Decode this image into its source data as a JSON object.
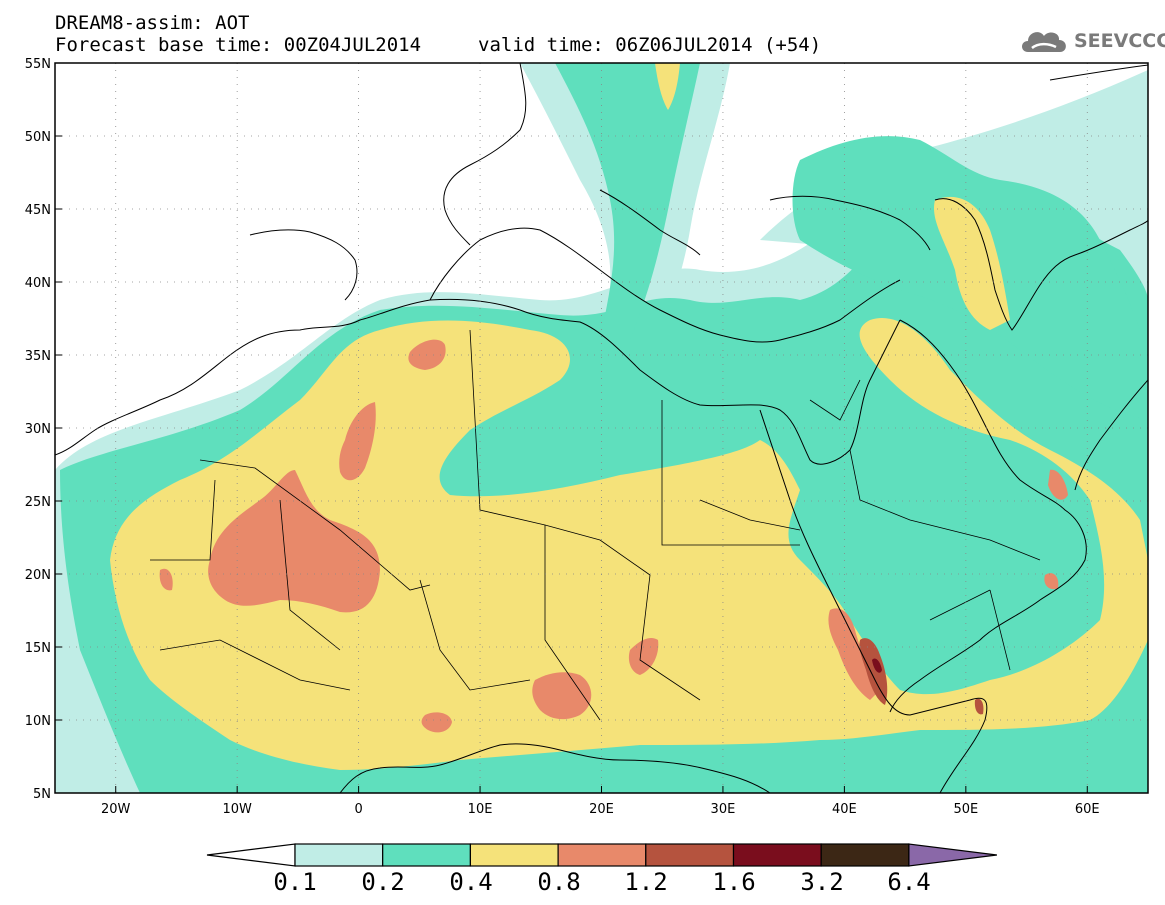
{
  "header": {
    "title": "DREAM8-assim: AOT",
    "base_time": "Forecast base time: 00Z04JUL2014",
    "valid_time": "valid time: 06Z06JUL2014 (+54)"
  },
  "logo": {
    "text": "SEEVCCC",
    "icon": "cloud-icon"
  },
  "map": {
    "projection": "lat-lon",
    "lon_range": [
      -25,
      65
    ],
    "lat_range": [
      5,
      55
    ],
    "lat_labels": [
      {
        "value": 55,
        "label": "55N"
      },
      {
        "value": 50,
        "label": "50N"
      },
      {
        "value": 45,
        "label": "45N"
      },
      {
        "value": 40,
        "label": "40N"
      },
      {
        "value": 35,
        "label": "35N"
      },
      {
        "value": 30,
        "label": "30N"
      },
      {
        "value": 25,
        "label": "25N"
      },
      {
        "value": 20,
        "label": "20N"
      },
      {
        "value": 15,
        "label": "15N"
      },
      {
        "value": 10,
        "label": "10N"
      },
      {
        "value": 5,
        "label": "5N"
      }
    ],
    "lon_labels": [
      {
        "value": -20,
        "label": "20W"
      },
      {
        "value": -10,
        "label": "10W"
      },
      {
        "value": 0,
        "label": "0"
      },
      {
        "value": 10,
        "label": "10E"
      },
      {
        "value": 20,
        "label": "20E"
      },
      {
        "value": 30,
        "label": "30E"
      },
      {
        "value": 40,
        "label": "40E"
      },
      {
        "value": 50,
        "label": "50E"
      },
      {
        "value": 60,
        "label": "60E"
      }
    ],
    "gridlines": "dotted"
  },
  "colorbar": {
    "labels": [
      "0.1",
      "0.2",
      "0.4",
      "0.8",
      "1.2",
      "1.6",
      "3.2",
      "6.4"
    ],
    "colors": [
      "#ffffff",
      "#c0ede6",
      "#5fdfbd",
      "#f5e27a",
      "#e8896a",
      "#b5533e",
      "#7a0d1d",
      "#3c2715",
      "#8a68a8"
    ]
  }
}
